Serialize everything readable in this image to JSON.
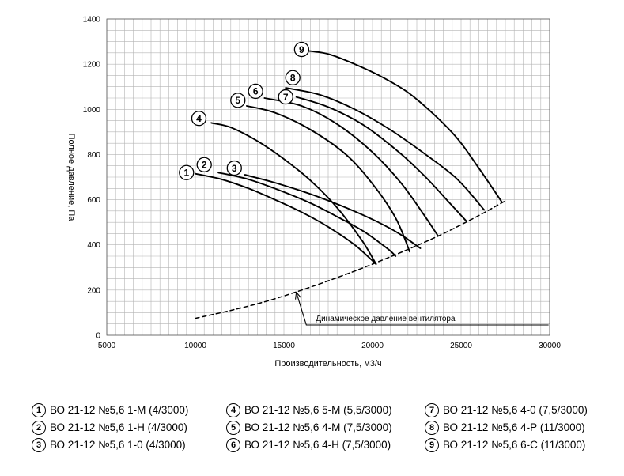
{
  "chart_data": {
    "type": "line",
    "xlabel": "Производительность, м3/ч",
    "ylabel": "Полное давление, Па",
    "xlim": [
      5000,
      30000
    ],
    "ylim": [
      0,
      1400
    ],
    "xticks": [
      5000,
      10000,
      15000,
      20000,
      25000,
      30000
    ],
    "yticks": [
      0,
      200,
      400,
      600,
      800,
      1000,
      1200,
      1400
    ],
    "grid": true,
    "series": [
      {
        "name": "1",
        "x": [
          10000,
          11500,
          13000,
          14500,
          16000,
          17500,
          19000,
          20200
        ],
        "y": [
          715,
          690,
          650,
          600,
          545,
          480,
          400,
          315
        ]
      },
      {
        "name": "2",
        "x": [
          11300,
          13000,
          14800,
          16500,
          18000,
          19500,
          20900,
          21300
        ],
        "y": [
          720,
          690,
          640,
          585,
          525,
          460,
          380,
          350
        ]
      },
      {
        "name": "3",
        "x": [
          12800,
          14500,
          16500,
          18500,
          20200,
          21500,
          22700
        ],
        "y": [
          710,
          675,
          625,
          565,
          505,
          450,
          385
        ]
      },
      {
        "name": "4",
        "x": [
          10900,
          12000,
          13500,
          15000,
          16500,
          18000,
          19400,
          20200
        ],
        "y": [
          940,
          920,
          860,
          780,
          685,
          565,
          420,
          315
        ]
      },
      {
        "name": "5",
        "x": [
          12900,
          14500,
          16500,
          18500,
          20000,
          21300,
          22100
        ],
        "y": [
          1015,
          985,
          910,
          800,
          670,
          520,
          370
        ]
      },
      {
        "name": "6",
        "x": [
          13900,
          16000,
          18000,
          20000,
          21600,
          22800,
          23700
        ],
        "y": [
          1050,
          1015,
          935,
          810,
          675,
          545,
          440
        ]
      },
      {
        "name": "7",
        "x": [
          15700,
          17500,
          19500,
          21500,
          23000,
          24300,
          25300
        ],
        "y": [
          1055,
          1010,
          930,
          810,
          700,
          590,
          505
        ]
      },
      {
        "name": "8",
        "x": [
          15100,
          17000,
          19000,
          21000,
          23000,
          24800,
          26300
        ],
        "y": [
          1095,
          1065,
          1000,
          910,
          800,
          690,
          555
        ]
      },
      {
        "name": "9",
        "x": [
          16200,
          17500,
          19000,
          20500,
          22000,
          23500,
          24800,
          26000,
          27300
        ],
        "y": [
          1260,
          1245,
          1200,
          1145,
          1075,
          975,
          870,
          740,
          590
        ]
      },
      {
        "name": "Динамическое давление вентилятора",
        "style": "dashed",
        "x": [
          10000,
          12000,
          14000,
          16000,
          18000,
          20000,
          22000,
          24000,
          26000,
          27500
        ],
        "y": [
          75,
          110,
          150,
          200,
          255,
          315,
          380,
          450,
          530,
          595
        ]
      }
    ],
    "markers": [
      {
        "label": "1",
        "x": 9500,
        "y": 720
      },
      {
        "label": "2",
        "x": 10500,
        "y": 755
      },
      {
        "label": "3",
        "x": 12200,
        "y": 740
      },
      {
        "label": "4",
        "x": 10200,
        "y": 960
      },
      {
        "label": "5",
        "x": 12400,
        "y": 1040
      },
      {
        "label": "6",
        "x": 13400,
        "y": 1080
      },
      {
        "label": "7",
        "x": 15100,
        "y": 1055
      },
      {
        "label": "8",
        "x": 15500,
        "y": 1140
      },
      {
        "label": "9",
        "x": 16000,
        "y": 1265
      }
    ],
    "annotation": {
      "text": "Динамическое давление вентилятора",
      "arrow_to_x": 15700,
      "arrow_to_y": 190,
      "text_x": 16800,
      "text_y": 105
    }
  },
  "legend": {
    "columns": [
      [
        {
          "num": "1",
          "text": "ВО 21-12 №5,6 1-М (4/3000)"
        },
        {
          "num": "2",
          "text": "ВО 21-12 №5,6 1-Н (4/3000)"
        },
        {
          "num": "3",
          "text": "ВО 21-12 №5,6 1-0 (4/3000)"
        }
      ],
      [
        {
          "num": "4",
          "text": "ВО 21-12 №5,6 5-М (5,5/3000)"
        },
        {
          "num": "5",
          "text": "ВО 21-12 №5,6 4-М (7,5/3000)"
        },
        {
          "num": "6",
          "text": "ВО 21-12 №5,6 4-Н (7,5/3000)"
        }
      ],
      [
        {
          "num": "7",
          "text": "ВО 21-12 №5,6 4-0 (7,5/3000)"
        },
        {
          "num": "8",
          "text": "ВО 21-12 №5,6 4-Р (11/3000)"
        },
        {
          "num": "9",
          "text": "ВО 21-12 №5,6 6-С (11/3000)"
        }
      ]
    ]
  }
}
